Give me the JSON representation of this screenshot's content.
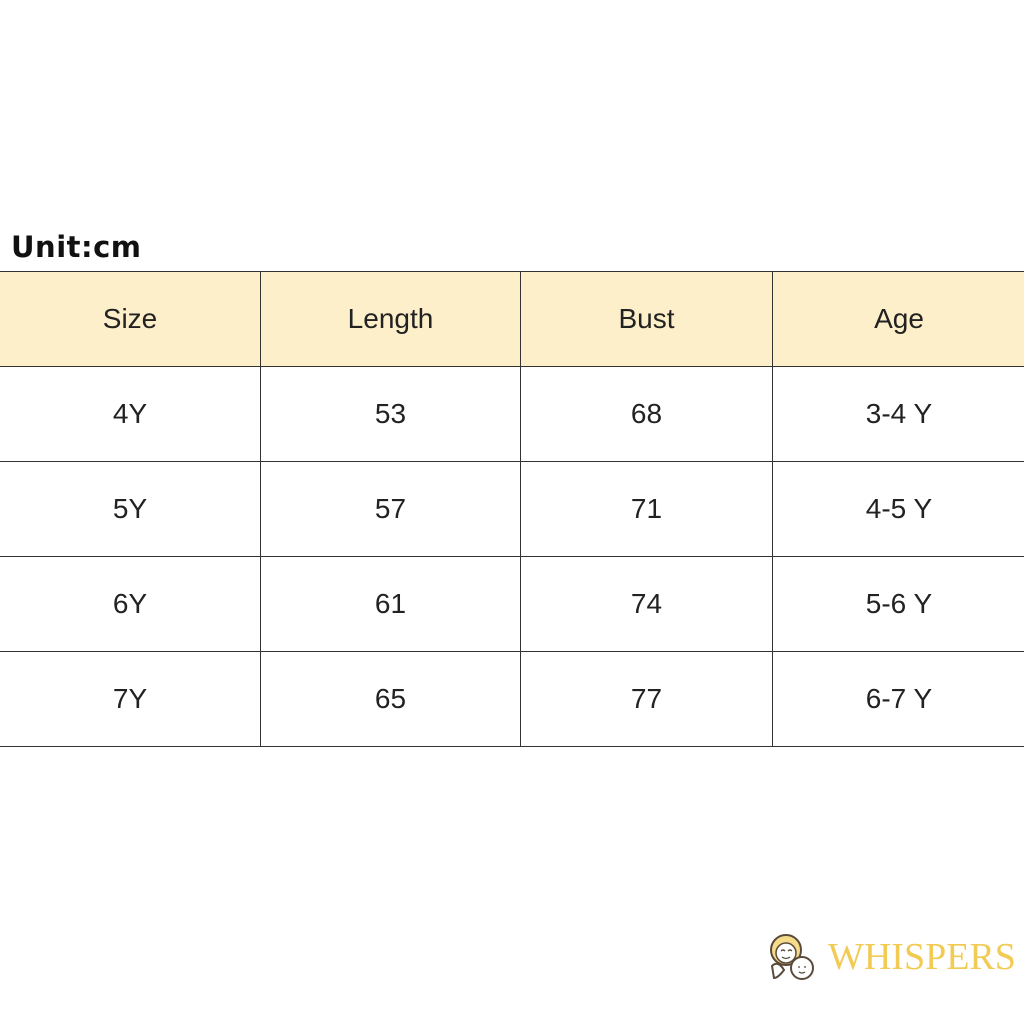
{
  "unit_label": "Unit:cm",
  "table": {
    "headers": [
      "Size",
      "Length",
      "Bust",
      "Age"
    ],
    "rows": [
      [
        "4Y",
        "53",
        "68",
        "3-4 Y"
      ],
      [
        "5Y",
        "57",
        "71",
        "4-5 Y"
      ],
      [
        "6Y",
        "61",
        "74",
        "5-6 Y"
      ],
      [
        "7Y",
        "65",
        "77",
        "6-7 Y"
      ]
    ],
    "header_color": "#fdefc9"
  },
  "logo": {
    "text": "WHISPERS",
    "color": "#f2cb54",
    "icon": "mother-child-faces-icon"
  }
}
